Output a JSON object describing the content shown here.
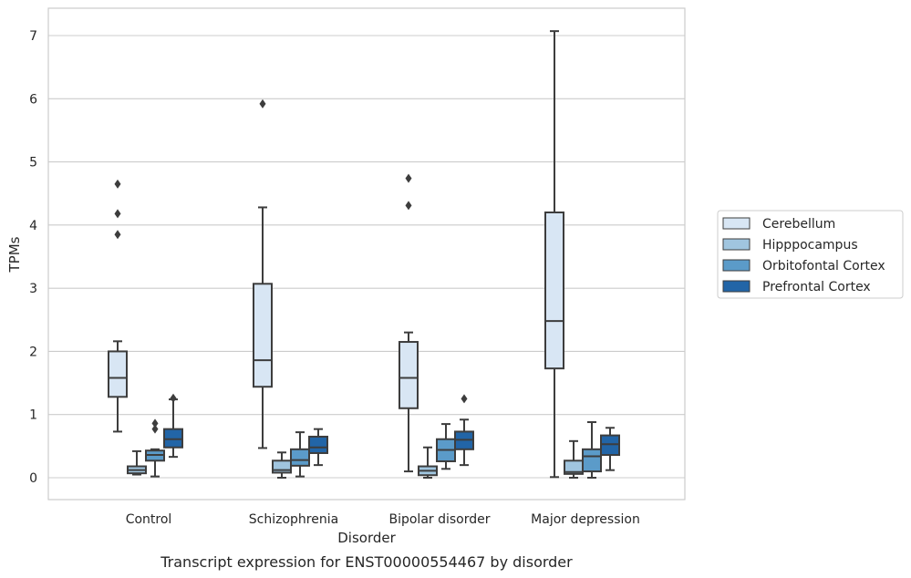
{
  "chart_data": {
    "type": "box",
    "caption": "Transcript expression for ENST00000554467 by disorder",
    "xlabel": "Disorder",
    "ylabel": "TPMs",
    "ylim": [
      -0.35,
      7.45
    ],
    "yticks": [
      0,
      1,
      2,
      3,
      4,
      5,
      6,
      7
    ],
    "grid": "horizontal",
    "legend_position": "right",
    "categories": [
      "Control",
      "Schizophrenia",
      "Bipolar disorder",
      "Major depression"
    ],
    "series": [
      {
        "name": "Cerebellum",
        "color": "#d8e6f4",
        "boxes": [
          {
            "whisker_low": 0.73,
            "q1": 1.28,
            "median": 1.58,
            "q3": 2.0,
            "whisker_high": 2.16,
            "outliers": [
              3.85,
              4.18,
              4.65
            ]
          },
          {
            "whisker_low": 0.47,
            "q1": 1.44,
            "median": 1.86,
            "q3": 3.07,
            "whisker_high": 4.28,
            "outliers": [
              5.92
            ]
          },
          {
            "whisker_low": 0.1,
            "q1": 1.1,
            "median": 1.58,
            "q3": 2.15,
            "whisker_high": 2.3,
            "outliers": [
              4.31,
              4.74
            ]
          },
          {
            "whisker_low": 0.01,
            "q1": 1.73,
            "median": 2.48,
            "q3": 4.2,
            "whisker_high": 7.07,
            "outliers": []
          }
        ]
      },
      {
        "name": "Hipppocampus",
        "color": "#a0c5df",
        "boxes": [
          {
            "whisker_low": 0.05,
            "q1": 0.07,
            "median": 0.12,
            "q3": 0.18,
            "whisker_high": 0.42,
            "outliers": []
          },
          {
            "whisker_low": 0.0,
            "q1": 0.08,
            "median": 0.12,
            "q3": 0.27,
            "whisker_high": 0.4,
            "outliers": []
          },
          {
            "whisker_low": 0.0,
            "q1": 0.04,
            "median": 0.11,
            "q3": 0.18,
            "whisker_high": 0.48,
            "outliers": []
          },
          {
            "whisker_low": 0.0,
            "q1": 0.06,
            "median": 0.09,
            "q3": 0.27,
            "whisker_high": 0.58,
            "outliers": []
          }
        ]
      },
      {
        "name": "Orbitofontal Cortex",
        "color": "#5b9bc9",
        "boxes": [
          {
            "whisker_low": 0.02,
            "q1": 0.27,
            "median": 0.36,
            "q3": 0.43,
            "whisker_high": 0.45,
            "outliers": [
              0.77,
              0.86
            ]
          },
          {
            "whisker_low": 0.02,
            "q1": 0.19,
            "median": 0.28,
            "q3": 0.45,
            "whisker_high": 0.72,
            "outliers": []
          },
          {
            "whisker_low": 0.14,
            "q1": 0.26,
            "median": 0.44,
            "q3": 0.61,
            "whisker_high": 0.85,
            "outliers": []
          },
          {
            "whisker_low": 0.0,
            "q1": 0.1,
            "median": 0.34,
            "q3": 0.45,
            "whisker_high": 0.88,
            "outliers": []
          }
        ]
      },
      {
        "name": "Prefrontal Cortex",
        "color": "#2265a7",
        "boxes": [
          {
            "whisker_low": 0.33,
            "q1": 0.48,
            "median": 0.61,
            "q3": 0.77,
            "whisker_high": 1.24,
            "outliers": [
              1.26
            ]
          },
          {
            "whisker_low": 0.2,
            "q1": 0.39,
            "median": 0.48,
            "q3": 0.65,
            "whisker_high": 0.77,
            "outliers": []
          },
          {
            "whisker_low": 0.2,
            "q1": 0.45,
            "median": 0.6,
            "q3": 0.73,
            "whisker_high": 0.92,
            "outliers": [
              1.25
            ]
          },
          {
            "whisker_low": 0.12,
            "q1": 0.36,
            "median": 0.53,
            "q3": 0.67,
            "whisker_high": 0.79,
            "outliers": []
          }
        ]
      }
    ]
  }
}
